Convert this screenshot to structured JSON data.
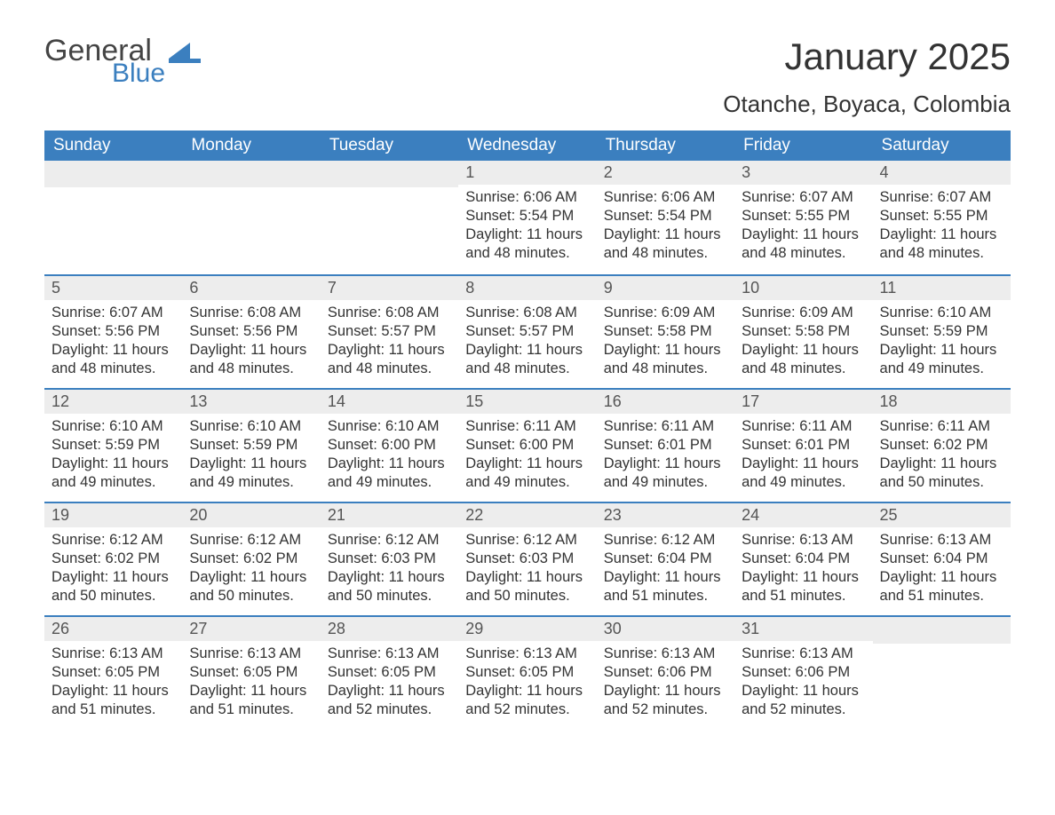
{
  "logo": {
    "general": "General",
    "blue": "Blue",
    "mark_color": "#3b7fbf"
  },
  "title": "January 2025",
  "location": "Otanche, Boyaca, Colombia",
  "colors": {
    "header_bg": "#3b7fbf",
    "header_text": "#ffffff",
    "daynum_bg": "#ededed",
    "top_rule": "#3b7fbf",
    "body_text": "#333333"
  },
  "day_headers": [
    "Sunday",
    "Monday",
    "Tuesday",
    "Wednesday",
    "Thursday",
    "Friday",
    "Saturday"
  ],
  "weeks": [
    [
      null,
      null,
      null,
      {
        "n": "1",
        "sunrise": "6:06 AM",
        "sunset": "5:54 PM",
        "dl": "11 hours and 48 minutes."
      },
      {
        "n": "2",
        "sunrise": "6:06 AM",
        "sunset": "5:54 PM",
        "dl": "11 hours and 48 minutes."
      },
      {
        "n": "3",
        "sunrise": "6:07 AM",
        "sunset": "5:55 PM",
        "dl": "11 hours and 48 minutes."
      },
      {
        "n": "4",
        "sunrise": "6:07 AM",
        "sunset": "5:55 PM",
        "dl": "11 hours and 48 minutes."
      }
    ],
    [
      {
        "n": "5",
        "sunrise": "6:07 AM",
        "sunset": "5:56 PM",
        "dl": "11 hours and 48 minutes."
      },
      {
        "n": "6",
        "sunrise": "6:08 AM",
        "sunset": "5:56 PM",
        "dl": "11 hours and 48 minutes."
      },
      {
        "n": "7",
        "sunrise": "6:08 AM",
        "sunset": "5:57 PM",
        "dl": "11 hours and 48 minutes."
      },
      {
        "n": "8",
        "sunrise": "6:08 AM",
        "sunset": "5:57 PM",
        "dl": "11 hours and 48 minutes."
      },
      {
        "n": "9",
        "sunrise": "6:09 AM",
        "sunset": "5:58 PM",
        "dl": "11 hours and 48 minutes."
      },
      {
        "n": "10",
        "sunrise": "6:09 AM",
        "sunset": "5:58 PM",
        "dl": "11 hours and 48 minutes."
      },
      {
        "n": "11",
        "sunrise": "6:10 AM",
        "sunset": "5:59 PM",
        "dl": "11 hours and 49 minutes."
      }
    ],
    [
      {
        "n": "12",
        "sunrise": "6:10 AM",
        "sunset": "5:59 PM",
        "dl": "11 hours and 49 minutes."
      },
      {
        "n": "13",
        "sunrise": "6:10 AM",
        "sunset": "5:59 PM",
        "dl": "11 hours and 49 minutes."
      },
      {
        "n": "14",
        "sunrise": "6:10 AM",
        "sunset": "6:00 PM",
        "dl": "11 hours and 49 minutes."
      },
      {
        "n": "15",
        "sunrise": "6:11 AM",
        "sunset": "6:00 PM",
        "dl": "11 hours and 49 minutes."
      },
      {
        "n": "16",
        "sunrise": "6:11 AM",
        "sunset": "6:01 PM",
        "dl": "11 hours and 49 minutes."
      },
      {
        "n": "17",
        "sunrise": "6:11 AM",
        "sunset": "6:01 PM",
        "dl": "11 hours and 49 minutes."
      },
      {
        "n": "18",
        "sunrise": "6:11 AM",
        "sunset": "6:02 PM",
        "dl": "11 hours and 50 minutes."
      }
    ],
    [
      {
        "n": "19",
        "sunrise": "6:12 AM",
        "sunset": "6:02 PM",
        "dl": "11 hours and 50 minutes."
      },
      {
        "n": "20",
        "sunrise": "6:12 AM",
        "sunset": "6:02 PM",
        "dl": "11 hours and 50 minutes."
      },
      {
        "n": "21",
        "sunrise": "6:12 AM",
        "sunset": "6:03 PM",
        "dl": "11 hours and 50 minutes."
      },
      {
        "n": "22",
        "sunrise": "6:12 AM",
        "sunset": "6:03 PM",
        "dl": "11 hours and 50 minutes."
      },
      {
        "n": "23",
        "sunrise": "6:12 AM",
        "sunset": "6:04 PM",
        "dl": "11 hours and 51 minutes."
      },
      {
        "n": "24",
        "sunrise": "6:13 AM",
        "sunset": "6:04 PM",
        "dl": "11 hours and 51 minutes."
      },
      {
        "n": "25",
        "sunrise": "6:13 AM",
        "sunset": "6:04 PM",
        "dl": "11 hours and 51 minutes."
      }
    ],
    [
      {
        "n": "26",
        "sunrise": "6:13 AM",
        "sunset": "6:05 PM",
        "dl": "11 hours and 51 minutes."
      },
      {
        "n": "27",
        "sunrise": "6:13 AM",
        "sunset": "6:05 PM",
        "dl": "11 hours and 51 minutes."
      },
      {
        "n": "28",
        "sunrise": "6:13 AM",
        "sunset": "6:05 PM",
        "dl": "11 hours and 52 minutes."
      },
      {
        "n": "29",
        "sunrise": "6:13 AM",
        "sunset": "6:05 PM",
        "dl": "11 hours and 52 minutes."
      },
      {
        "n": "30",
        "sunrise": "6:13 AM",
        "sunset": "6:06 PM",
        "dl": "11 hours and 52 minutes."
      },
      {
        "n": "31",
        "sunrise": "6:13 AM",
        "sunset": "6:06 PM",
        "dl": "11 hours and 52 minutes."
      },
      null
    ]
  ],
  "labels": {
    "sunrise": "Sunrise: ",
    "sunset": "Sunset: ",
    "daylight": "Daylight: "
  }
}
